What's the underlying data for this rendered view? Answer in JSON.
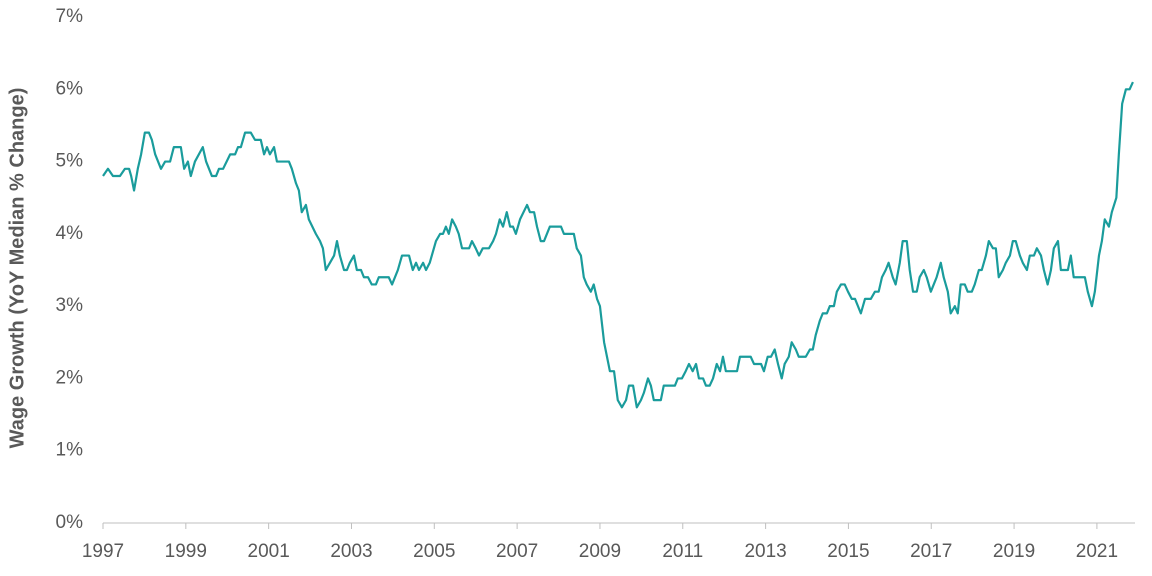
{
  "chart_data": {
    "type": "line",
    "y_label": "Wage Growth (YoY Median % Change)",
    "color": "#1a9c9c",
    "grid": false,
    "xlim": [
      1997,
      2021.92
    ],
    "xticks": [
      1997,
      1999,
      2001,
      2003,
      2005,
      2007,
      2009,
      2011,
      2013,
      2015,
      2017,
      2019,
      2021
    ],
    "ylim": [
      0,
      7
    ],
    "yticks": [
      {
        "value": 0,
        "label": "0%"
      },
      {
        "value": 1,
        "label": "1%"
      },
      {
        "value": 2,
        "label": "2%"
      },
      {
        "value": 3,
        "label": "3%"
      },
      {
        "value": 4,
        "label": "4%"
      },
      {
        "value": 5,
        "label": "5%"
      },
      {
        "value": 6,
        "label": "6%"
      },
      {
        "value": 7,
        "label": "7%"
      }
    ],
    "x": [
      1997.0,
      1997.12,
      1997.24,
      1997.41,
      1997.53,
      1997.63,
      1997.68,
      1997.75,
      1997.84,
      1997.92,
      1998.01,
      1998.11,
      1998.18,
      1998.26,
      1998.4,
      1998.5,
      1998.62,
      1998.71,
      1998.88,
      1998.96,
      1999.05,
      1999.12,
      1999.22,
      1999.41,
      1999.49,
      1999.63,
      1999.73,
      1999.8,
      1999.9,
      2000.07,
      2000.19,
      2000.26,
      2000.33,
      2000.43,
      2000.57,
      2000.67,
      2000.81,
      2000.89,
      2000.96,
      2001.03,
      2001.13,
      2001.2,
      2001.37,
      2001.49,
      2001.56,
      2001.66,
      2001.73,
      2001.8,
      2001.9,
      2001.97,
      2002.14,
      2002.24,
      2002.31,
      2002.38,
      2002.48,
      2002.58,
      2002.65,
      2002.72,
      2002.82,
      2002.89,
      2002.96,
      2003.06,
      2003.13,
      2003.23,
      2003.3,
      2003.4,
      2003.49,
      2003.59,
      2003.66,
      2003.83,
      2003.9,
      2003.98,
      2004.12,
      2004.22,
      2004.39,
      2004.48,
      2004.56,
      2004.63,
      2004.73,
      2004.8,
      2004.89,
      2005.04,
      2005.14,
      2005.21,
      2005.28,
      2005.35,
      2005.43,
      2005.52,
      2005.59,
      2005.67,
      2005.84,
      2005.91,
      2006.0,
      2006.08,
      2006.17,
      2006.32,
      2006.42,
      2006.49,
      2006.58,
      2006.66,
      2006.75,
      2006.83,
      2006.9,
      2006.97,
      2007.07,
      2007.24,
      2007.31,
      2007.41,
      2007.48,
      2007.57,
      2007.65,
      2007.79,
      2008.06,
      2008.13,
      2008.37,
      2008.44,
      2008.54,
      2008.61,
      2008.68,
      2008.78,
      2008.85,
      2008.93,
      2009.0,
      2009.1,
      2009.17,
      2009.24,
      2009.34,
      2009.43,
      2009.53,
      2009.63,
      2009.7,
      2009.8,
      2009.89,
      2009.99,
      2010.06,
      2010.16,
      2010.23,
      2010.3,
      2010.47,
      2010.54,
      2010.71,
      2010.81,
      2010.88,
      2010.98,
      2011.07,
      2011.15,
      2011.24,
      2011.32,
      2011.39,
      2011.49,
      2011.56,
      2011.65,
      2011.73,
      2011.82,
      2011.9,
      2011.97,
      2012.04,
      2012.14,
      2012.31,
      2012.38,
      2012.64,
      2012.72,
      2012.81,
      2012.89,
      2012.96,
      2013.05,
      2013.13,
      2013.22,
      2013.3,
      2013.39,
      2013.46,
      2013.56,
      2013.63,
      2013.73,
      2013.8,
      2013.97,
      2014.07,
      2014.14,
      2014.21,
      2014.31,
      2014.38,
      2014.48,
      2014.55,
      2014.65,
      2014.72,
      2014.82,
      2014.91,
      2014.99,
      2015.08,
      2015.16,
      2015.23,
      2015.3,
      2015.4,
      2015.54,
      2015.64,
      2015.73,
      2015.81,
      2015.9,
      2015.97,
      2016.07,
      2016.14,
      2016.24,
      2016.31,
      2016.41,
      2016.48,
      2016.56,
      2016.65,
      2016.72,
      2016.82,
      2016.89,
      2016.99,
      2017.06,
      2017.13,
      2017.23,
      2017.3,
      2017.4,
      2017.47,
      2017.57,
      2017.64,
      2017.71,
      2017.81,
      2017.88,
      2017.98,
      2018.05,
      2018.15,
      2018.22,
      2018.32,
      2018.39,
      2018.49,
      2018.56,
      2018.63,
      2018.73,
      2018.8,
      2018.9,
      2018.97,
      2019.04,
      2019.14,
      2019.21,
      2019.31,
      2019.38,
      2019.48,
      2019.55,
      2019.65,
      2019.72,
      2019.81,
      2019.89,
      2019.96,
      2020.06,
      2020.13,
      2020.3,
      2020.37,
      2020.44,
      2020.71,
      2020.78,
      2020.88,
      2020.95,
      2021.05,
      2021.12,
      2021.19,
      2021.29,
      2021.36,
      2021.47,
      2021.53,
      2021.61,
      2021.7,
      2021.79,
      2021.87
    ],
    "values": [
      4.8,
      4.9,
      4.8,
      4.8,
      4.9,
      4.9,
      4.8,
      4.6,
      4.9,
      5.1,
      5.4,
      5.4,
      5.3,
      5.1,
      4.9,
      5.0,
      5.0,
      5.2,
      5.2,
      4.9,
      5.0,
      4.8,
      5.0,
      5.2,
      5.0,
      4.8,
      4.8,
      4.9,
      4.9,
      5.1,
      5.1,
      5.2,
      5.2,
      5.4,
      5.4,
      5.3,
      5.3,
      5.1,
      5.2,
      5.1,
      5.2,
      5.0,
      5.0,
      5.0,
      4.9,
      4.7,
      4.6,
      4.3,
      4.4,
      4.2,
      4.0,
      3.9,
      3.8,
      3.5,
      3.6,
      3.7,
      3.9,
      3.7,
      3.5,
      3.5,
      3.6,
      3.7,
      3.5,
      3.5,
      3.4,
      3.4,
      3.3,
      3.3,
      3.4,
      3.4,
      3.4,
      3.3,
      3.5,
      3.7,
      3.7,
      3.5,
      3.6,
      3.5,
      3.6,
      3.5,
      3.6,
      3.9,
      4.0,
      4.0,
      4.1,
      4.0,
      4.2,
      4.1,
      4.0,
      3.8,
      3.8,
      3.9,
      3.8,
      3.7,
      3.8,
      3.8,
      3.9,
      4.0,
      4.2,
      4.1,
      4.3,
      4.1,
      4.1,
      4.0,
      4.2,
      4.4,
      4.3,
      4.3,
      4.1,
      3.9,
      3.9,
      4.1,
      4.1,
      4.0,
      4.0,
      3.8,
      3.7,
      3.4,
      3.3,
      3.2,
      3.3,
      3.1,
      3.0,
      2.5,
      2.3,
      2.1,
      2.1,
      1.7,
      1.6,
      1.7,
      1.9,
      1.9,
      1.6,
      1.7,
      1.8,
      2.0,
      1.9,
      1.7,
      1.7,
      1.9,
      1.9,
      1.9,
      2.0,
      2.0,
      2.1,
      2.2,
      2.1,
      2.2,
      2.0,
      2.0,
      1.9,
      1.9,
      2.0,
      2.2,
      2.1,
      2.3,
      2.1,
      2.1,
      2.1,
      2.3,
      2.3,
      2.2,
      2.2,
      2.2,
      2.1,
      2.3,
      2.3,
      2.4,
      2.2,
      2.0,
      2.2,
      2.3,
      2.5,
      2.4,
      2.3,
      2.3,
      2.4,
      2.4,
      2.6,
      2.8,
      2.9,
      2.9,
      3.0,
      3.0,
      3.2,
      3.3,
      3.3,
      3.2,
      3.1,
      3.1,
      3.0,
      2.9,
      3.1,
      3.1,
      3.2,
      3.2,
      3.4,
      3.5,
      3.6,
      3.4,
      3.3,
      3.6,
      3.9,
      3.9,
      3.5,
      3.2,
      3.2,
      3.4,
      3.5,
      3.4,
      3.2,
      3.3,
      3.4,
      3.6,
      3.4,
      3.2,
      2.9,
      3.0,
      2.9,
      3.3,
      3.3,
      3.2,
      3.2,
      3.3,
      3.5,
      3.5,
      3.7,
      3.9,
      3.8,
      3.8,
      3.4,
      3.5,
      3.6,
      3.7,
      3.9,
      3.9,
      3.7,
      3.6,
      3.5,
      3.7,
      3.7,
      3.8,
      3.7,
      3.5,
      3.3,
      3.5,
      3.8,
      3.9,
      3.5,
      3.5,
      3.7,
      3.4,
      3.4,
      3.2,
      3.0,
      3.2,
      3.7,
      3.9,
      4.2,
      4.1,
      4.3,
      4.5,
      5.1,
      5.8,
      6.0,
      6.0,
      6.1
    ]
  }
}
